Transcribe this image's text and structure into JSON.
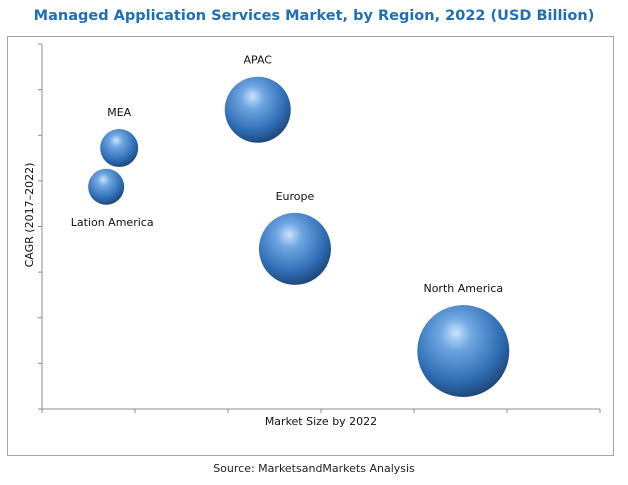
{
  "chart_data": {
    "type": "scatter",
    "subtype": "bubble",
    "title": "Managed Application Services Market, by Region, 2022 (USD Billion)",
    "xlabel": "Market Size by 2022",
    "ylabel": "CAGR (2017–2022)",
    "xlim": [
      0,
      6
    ],
    "ylim": [
      0,
      8
    ],
    "x_tick_count": 7,
    "y_tick_count": 9,
    "tick_labels_shown": false,
    "grid": false,
    "legend": "none",
    "bubble_color": "#2f6db4",
    "points": [
      {
        "label": "APAC",
        "x": 2.32,
        "y": 6.56,
        "size": 33
      },
      {
        "label": "MEA",
        "x": 0.83,
        "y": 5.72,
        "size": 19
      },
      {
        "label": "Lation America",
        "x": 0.69,
        "y": 4.87,
        "size": 18
      },
      {
        "label": "Europe",
        "x": 2.72,
        "y": 3.51,
        "size": 36
      },
      {
        "label": "North America",
        "x": 4.53,
        "y": 1.27,
        "size": 46
      }
    ]
  },
  "source": "Source: MarketsandMarkets Analysis"
}
